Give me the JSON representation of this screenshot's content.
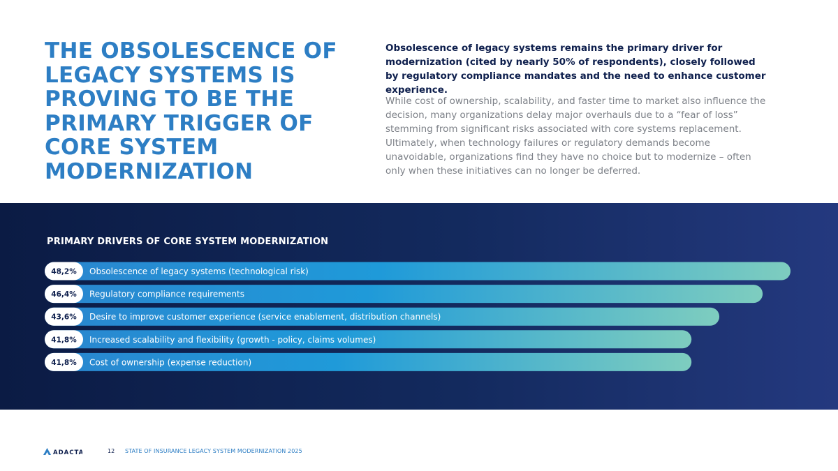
{
  "headline": "THE OBSOLESCENCE OF LEGACY SYSTEMS IS PROVING TO BE THE PRIMARY TRIGGER OF CORE SYSTEM MODERNIZATION",
  "lead": "Obsolescence of legacy systems remains the primary driver for modernization (cited by nearly 50% of respondents), closely followed by regulatory compliance mandates and the need to enhance customer experience.",
  "body": "While cost of ownership, scalability, and faster time to market also influence the decision, many organizations delay major overhauls due to a “fear of loss” stemming from significant risks associated with core systems replacement. Ultimately, when technology failures or regulatory demands become unavoidable, organizations find they have no choice but to modernize – often only when these initiatives can no longer be deferred.",
  "chart_data": {
    "type": "bar",
    "orientation": "horizontal",
    "title": "PRIMARY DRIVERS OF CORE SYSTEM MODERNIZATION",
    "categories": [
      "Obsolescence of legacy systems (technological risk)",
      "Regulatory compliance requirements",
      "Desire to improve customer experience (service enablement, distribution channels)",
      "Increased scalability and flexibility (growth - policy, claims volumes)",
      "Cost of ownership (expense reduction)"
    ],
    "values": [
      48.2,
      46.4,
      43.6,
      41.8,
      41.8
    ],
    "value_labels": [
      "48,2%",
      "46,4%",
      "43,6%",
      "41,8%",
      "41,8%"
    ],
    "unit": "%",
    "gradient_colors": [
      "#2a86cf",
      "#1f9ad9",
      "#7ecdbf"
    ],
    "grid": false,
    "legend": "none"
  },
  "footer": {
    "brand": "ADACTA",
    "page_number": "12",
    "report_title": "STATE OF INSURANCE LEGACY SYSTEM MODERNIZATION 2025"
  },
  "colors": {
    "accent": "#2d7ec4",
    "navy": "#0e1f4d",
    "body_gray": "#7d8188"
  }
}
